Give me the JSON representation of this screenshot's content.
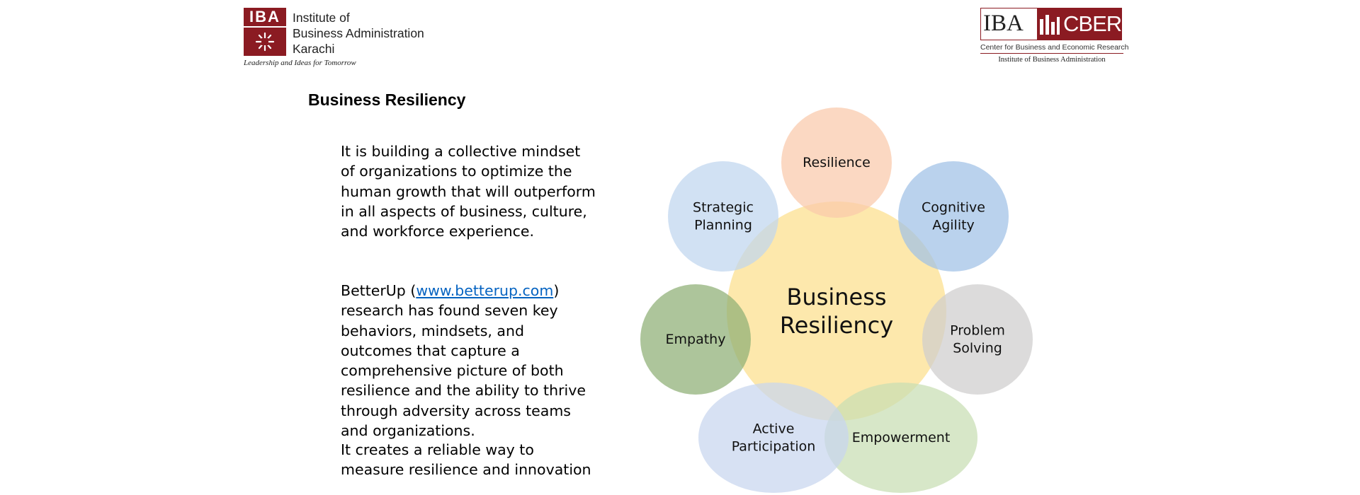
{
  "header": {
    "iba_logo": {
      "box_text": "IBA",
      "institute_lines": [
        "Institute of",
        "Business Administration",
        "Karachi"
      ],
      "tagline": "Leadership and Ideas for Tomorrow"
    },
    "cber_logo": {
      "left_text": "IBA",
      "right_text": "CBER",
      "subtitle": "Center for Business and Economic Research",
      "institute": "Institute of Business Administration"
    }
  },
  "content": {
    "heading": "Business Resiliency",
    "paragraph1": "It is building a collective mindset of organizations to optimize the human growth that will outperform in all aspects of business, culture, and workforce experience.",
    "paragraph2": {
      "before": "BetterUp (",
      "link": "www.betterup.com",
      "after": ") research has found seven key behaviors, mindsets, and outcomes that capture a comprehensive picture of both resilience and the ability to thrive through adversity across teams and organizations."
    },
    "paragraph3": "It creates a reliable way to measure resilience and innovation"
  },
  "diagram": {
    "center": {
      "lines": [
        "Business",
        "Resiliency"
      ],
      "color": "#fde7a8"
    },
    "nodes": [
      {
        "id": "resilience",
        "lines": [
          "Resilience"
        ],
        "color": "#f9c9ab"
      },
      {
        "id": "cognitive-agility",
        "lines": [
          "Cognitive",
          "Agility"
        ],
        "color": "#a0c1e6"
      },
      {
        "id": "problem-solving",
        "lines": [
          "Problem",
          "Solving"
        ],
        "color": "#cfcdcd"
      },
      {
        "id": "empowerment",
        "lines": [
          "Empowerment"
        ],
        "color": "#c8deb3"
      },
      {
        "id": "active-participation",
        "lines": [
          "Active",
          "Participation"
        ],
        "color": "#c7d6ee"
      },
      {
        "id": "empathy",
        "lines": [
          "Empathy"
        ],
        "color": "#8daf75"
      },
      {
        "id": "strategic-planning",
        "lines": [
          "Strategic",
          "Planning"
        ],
        "color": "#bfd5ee"
      }
    ]
  }
}
